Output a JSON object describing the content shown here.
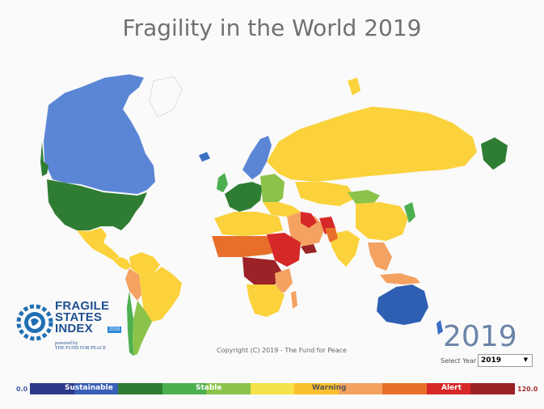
{
  "title": "Fragility in the World 2019",
  "logo": {
    "line1": "FRAGILE",
    "line2": "STATES",
    "line3": "INDEX",
    "powered_by": "powered by",
    "org": "THE FUND FOR PEACE",
    "badge": "2019"
  },
  "copyright": "Copyright (C) 2019 - The Fund for Peace",
  "year_display": "2019",
  "year_selector": {
    "label": "Select Year",
    "selected": "2019"
  },
  "legend": {
    "min": "0.0",
    "max": "120.0",
    "labels": [
      "Sustainable",
      "Stable",
      "Warning",
      "Alert"
    ],
    "colors": [
      "#2d3a8c",
      "#3a6fc4",
      "#2e7d32",
      "#4caf50",
      "#8bc34a",
      "#ffeb3b",
      "#fbc02d",
      "#f4a261",
      "#e76f2a",
      "#d62828",
      "#9b2226"
    ]
  },
  "map_colors": {
    "sustainable": "#3a6fc4",
    "very_stable": "#2e7d32",
    "stable": "#4caf50",
    "warning_low": "#ffeb3b",
    "warning": "#fbd23b",
    "warning_high": "#f4a261",
    "alert": "#e76f2a",
    "high_alert": "#d62828",
    "very_high_alert": "#9b2226"
  }
}
